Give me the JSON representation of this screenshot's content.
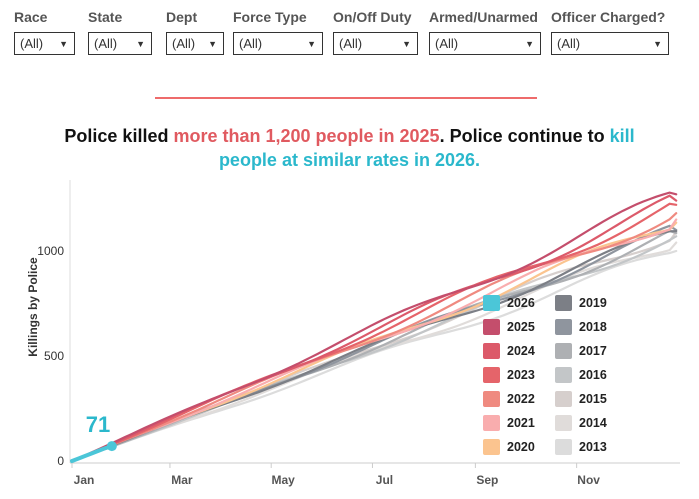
{
  "filters": [
    {
      "label": "Race",
      "value": "(All)"
    },
    {
      "label": "State",
      "value": "(All)"
    },
    {
      "label": "Dept",
      "value": "(All)"
    },
    {
      "label": "Force Type",
      "value": "(All)"
    },
    {
      "label": "On/Off Duty",
      "value": "(All)"
    },
    {
      "label": "Armed/Unarmed",
      "value": "(All)"
    },
    {
      "label": "Officer Charged?",
      "value": "(All)"
    }
  ],
  "title": {
    "p1": "Police killed ",
    "p2": "more than 1,200 people in 2025",
    "p3": ". Police continue to ",
    "p4": "kill",
    "p5": "people at similar rates in 2026."
  },
  "chart_data": {
    "type": "line",
    "ylabel": "Killings by Police",
    "ylim": [
      0,
      1340
    ],
    "yticks": [
      0,
      500,
      1000
    ],
    "xticks": [
      {
        "label": "Jan",
        "day": 0
      },
      {
        "label": "Mar",
        "day": 59
      },
      {
        "label": "May",
        "day": 120
      },
      {
        "label": "Jul",
        "day": 181
      },
      {
        "label": "Sep",
        "day": 243
      },
      {
        "label": "Nov",
        "day": 304
      }
    ],
    "annotation": {
      "text": "71",
      "series": "2026"
    },
    "series": [
      {
        "name": "2013",
        "total": 1000,
        "color": "#dcdcdc"
      },
      {
        "name": "2014",
        "total": 1040,
        "color": "#e0dcda"
      },
      {
        "name": "2015",
        "total": 1090,
        "color": "#d6cfcd"
      },
      {
        "name": "2016",
        "total": 1070,
        "color": "#c3c6c8"
      },
      {
        "name": "2017",
        "total": 1085,
        "color": "#aeb0b3"
      },
      {
        "name": "2018",
        "total": 1100,
        "color": "#8f959e"
      },
      {
        "name": "2019",
        "total": 1095,
        "color": "#7c7f86"
      },
      {
        "name": "2020",
        "total": 1135,
        "color": "#fbc48f"
      },
      {
        "name": "2021",
        "total": 1150,
        "color": "#f9adae"
      },
      {
        "name": "2022",
        "total": 1180,
        "color": "#ef8a80"
      },
      {
        "name": "2023",
        "total": 1220,
        "color": "#e5646a"
      },
      {
        "name": "2024",
        "total": 1240,
        "color": "#dc5a6a"
      },
      {
        "name": "2025",
        "total": 1270,
        "color": "#c44e6c"
      },
      {
        "name": "2026",
        "total": 71,
        "through_day": 24,
        "color": "#4bc6d8"
      }
    ]
  }
}
